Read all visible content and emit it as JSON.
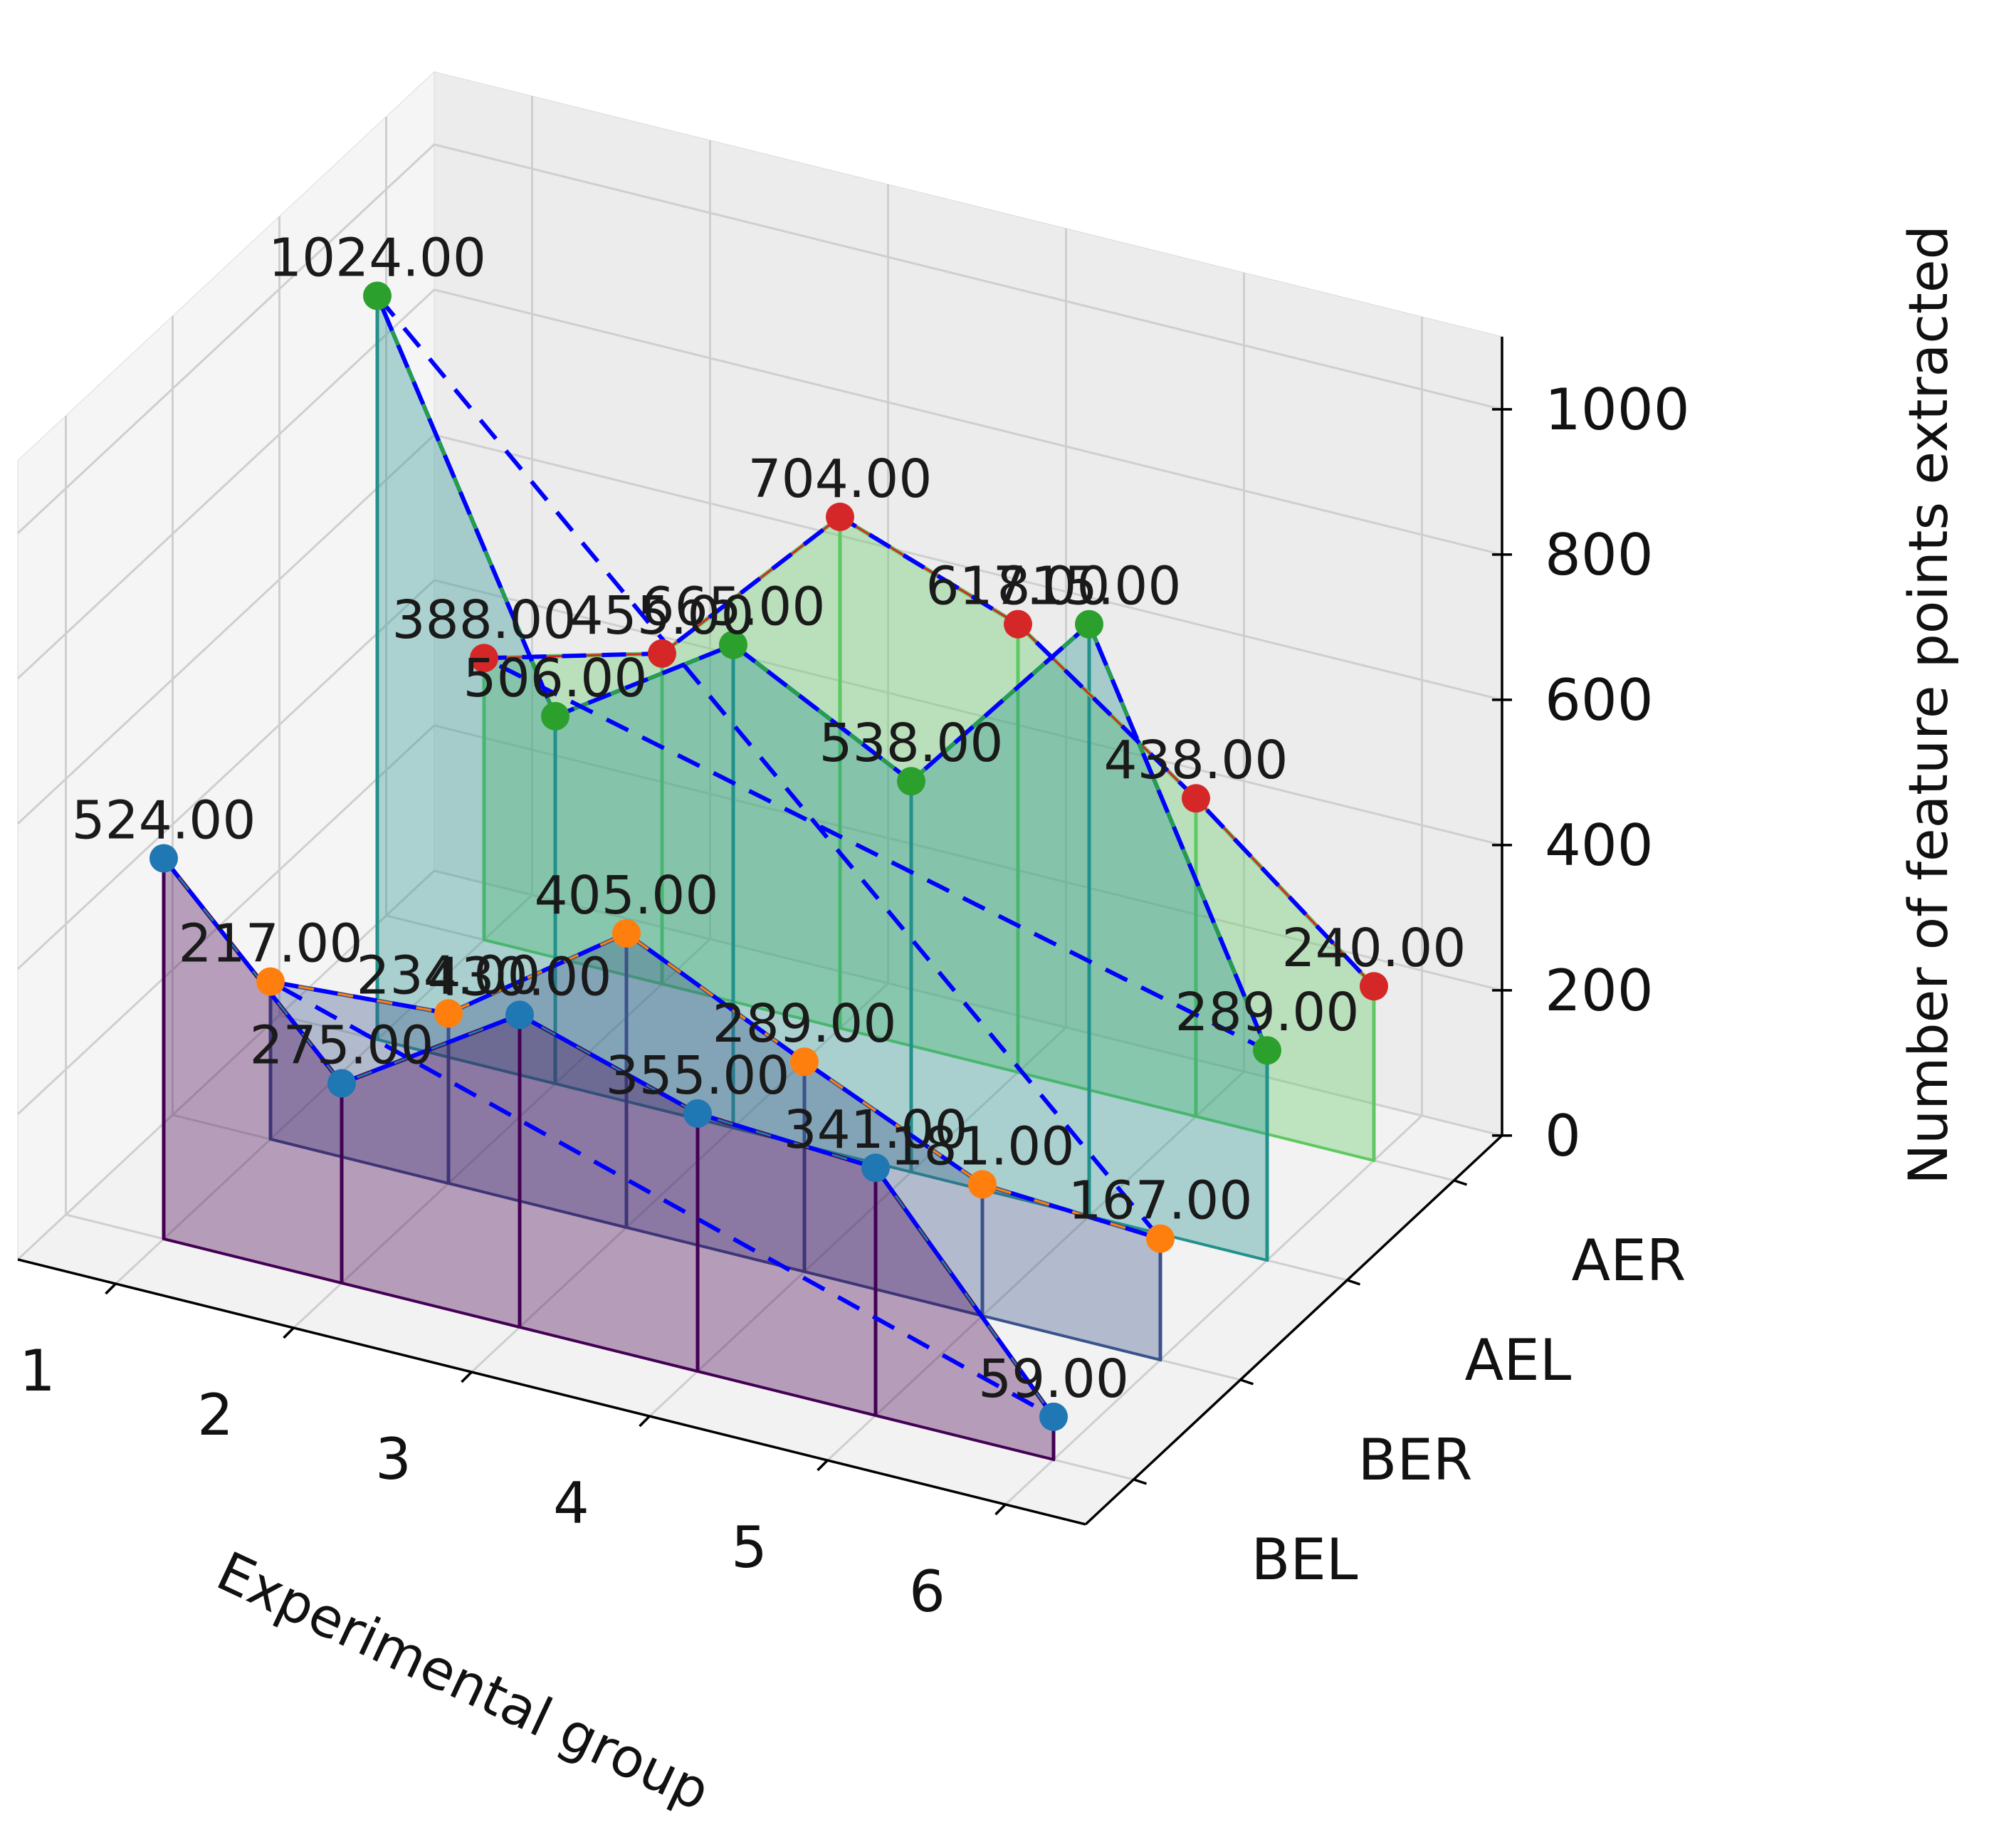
{
  "chart_data": {
    "type": "line",
    "title": "",
    "xlabel": "Experimental group",
    "ylabel": "",
    "zlabel": "Number of feature points extracted",
    "x": [
      1,
      2,
      3,
      4,
      5,
      6
    ],
    "series": [
      {
        "name": "BEL",
        "values": [
          524,
          275,
          430,
          355,
          341,
          59
        ],
        "color": "#1f77b4",
        "fill": "#440154"
      },
      {
        "name": "BER",
        "values": [
          217,
          234,
          405,
          289,
          181,
          167
        ],
        "color": "#ff7f0e",
        "fill": "#3b528b"
      },
      {
        "name": "AEL",
        "values": [
          1024,
          506,
          665,
          538,
          815,
          289
        ],
        "color": "#2ca02c",
        "fill": "#21918c"
      },
      {
        "name": "AER",
        "values": [
          388,
          455,
          704,
          617,
          438,
          240
        ],
        "color": "#d62728",
        "fill": "#5ec962"
      }
    ],
    "point_labels": [
      [
        "524.00",
        "275.00",
        "430.00",
        "355.00",
        "341.00",
        "59.00"
      ],
      [
        "217.00",
        "234.00",
        "405.00",
        "289.00",
        "181.00",
        "167.00"
      ],
      [
        "1024.00",
        "506.00",
        "665.00",
        "538.00",
        "815.00",
        "289.00"
      ],
      [
        "388.00",
        "455.00",
        "704.00",
        "617.00",
        "438.00",
        "240.00"
      ]
    ],
    "zticks": [
      "0",
      "200",
      "400",
      "600",
      "800",
      "1000"
    ],
    "xticks": [
      "1",
      "2",
      "3",
      "4",
      "5",
      "6"
    ],
    "yticks": [
      "BEL",
      "BER",
      "AEL",
      "AER"
    ],
    "zlim": [
      0,
      1100
    ],
    "grid": true,
    "connector_line": {
      "style": "dashed",
      "color": "#0000ff"
    }
  }
}
